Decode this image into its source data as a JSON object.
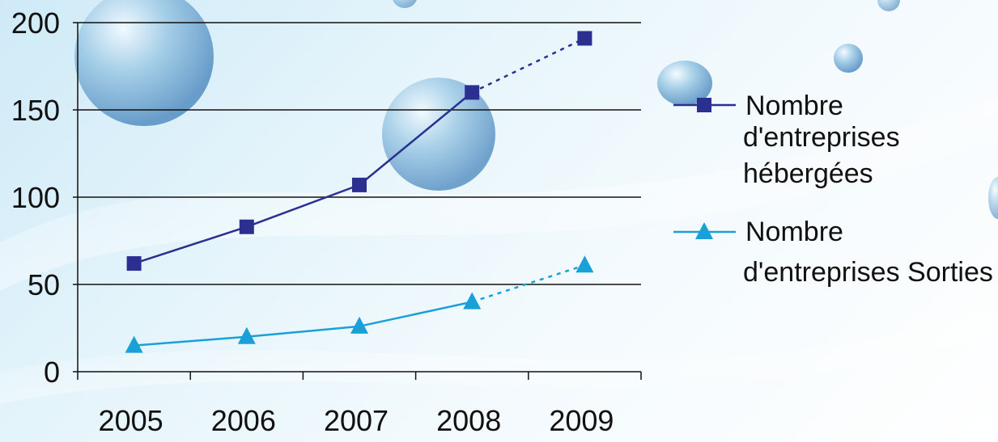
{
  "chart_data": {
    "type": "line",
    "title": "",
    "xlabel": "",
    "ylabel": "",
    "categories": [
      "2005",
      "2006",
      "2007",
      "2008",
      "2009"
    ],
    "ylim": [
      0,
      200
    ],
    "yticks": [
      0,
      50,
      100,
      150,
      200
    ],
    "grid": true,
    "legend_position": "right",
    "series": [
      {
        "name_lines": [
          "Nombre",
          "d'entreprises",
          "hébergées"
        ],
        "values": [
          62,
          83,
          107,
          160,
          191
        ],
        "marker": "square",
        "color": "#2b2f8f",
        "dashed_last_segment": true
      },
      {
        "name_lines": [
          "Nombre",
          "d'entreprises Sorties"
        ],
        "values": [
          15,
          20,
          26,
          40,
          61
        ],
        "marker": "triangle",
        "color": "#1aa0d8",
        "dashed_last_segment": true
      }
    ]
  }
}
